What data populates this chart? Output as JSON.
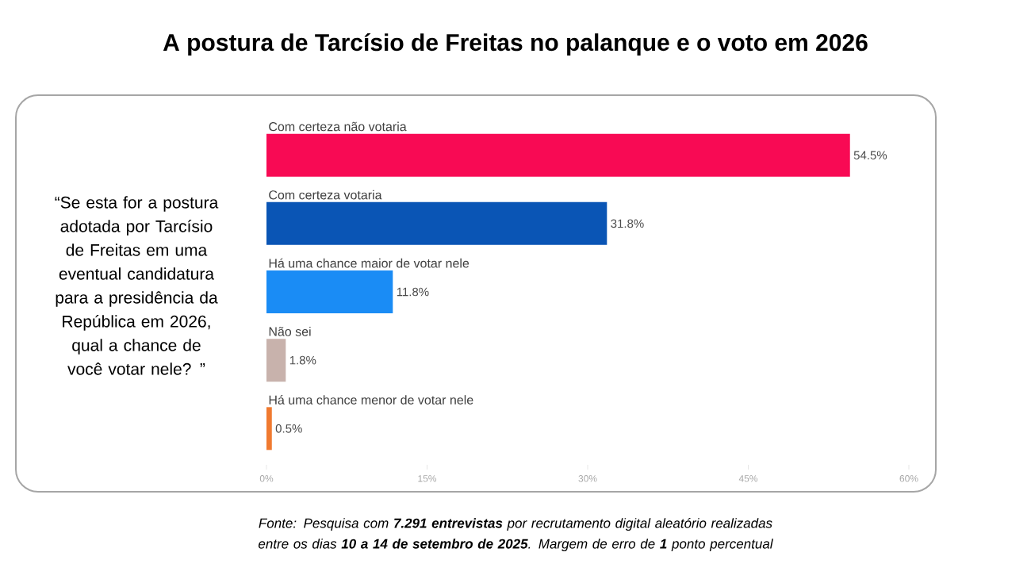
{
  "chart_data": {
    "type": "bar",
    "orientation": "horizontal",
    "title": "A postura de Tarcísio de Freitas no palanque e o voto em 2026",
    "categories": [
      "Com certeza não votaria",
      "Com certeza votaria",
      "Há uma chance maior de votar nele",
      "Não sei",
      "Há uma chance menor de votar nele"
    ],
    "values": [
      54.5,
      31.8,
      11.8,
      1.8,
      0.5
    ],
    "colors": [
      "#f80a54",
      "#0a55b5",
      "#1a8cf5",
      "#c8b2ac",
      "#f07a30"
    ],
    "value_labels": [
      "54.5%",
      "31.8%",
      "11.8%",
      "1.8%",
      "0.5%"
    ],
    "xlim": [
      0,
      60
    ],
    "xticks": [
      {
        "value": 0,
        "label": "0%"
      },
      {
        "value": 15,
        "label": "15%"
      },
      {
        "value": 30,
        "label": "30%"
      },
      {
        "value": 45,
        "label": "45%"
      },
      {
        "value": 60,
        "label": "60%"
      }
    ],
    "annotations": [
      "“Se esta for a postura adotada por Tarcísio de Freitas em uma eventual candidatura para a presidência da República em 2026, qual a chance de você votar nele? ”",
      "Fonte: Pesquisa com **7.291 entrevistas** por recrutamento digital aleatório realizadas entre os dias **10 a 14 de setembro de 2025**. Margem de erro de **1** ponto percentual"
    ]
  }
}
